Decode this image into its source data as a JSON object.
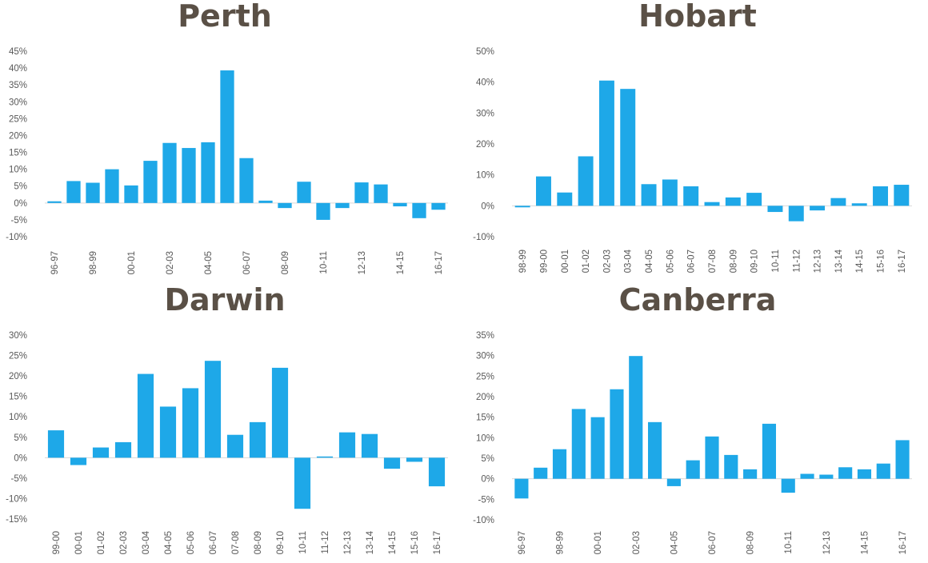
{
  "colors": {
    "bar": "#1ea8e8",
    "title": "#5a5046",
    "text": "#595959",
    "axis": "#d9d9d9"
  },
  "chart_data": [
    {
      "type": "bar",
      "title": "Perth",
      "ylim": [
        -10,
        45
      ],
      "yticks": [
        "45%",
        "40%",
        "35%",
        "30%",
        "25%",
        "20%",
        "15%",
        "10%",
        "5%",
        "0%",
        "-5%",
        "-10%"
      ],
      "ytick_values": [
        45,
        40,
        35,
        30,
        25,
        20,
        15,
        10,
        5,
        0,
        -5,
        -10
      ],
      "categories": [
        "96-97",
        "97-98",
        "98-99",
        "99-00",
        "00-01",
        "01-02",
        "02-03",
        "03-04",
        "04-05",
        "05-06",
        "06-07",
        "07-08",
        "08-09",
        "09-10",
        "10-11",
        "11-12",
        "12-13",
        "13-14",
        "14-15",
        "15-16",
        "16-17"
      ],
      "xtick_labels": [
        "96-97",
        "",
        "98-99",
        "",
        "00-01",
        "",
        "02-03",
        "",
        "04-05",
        "",
        "06-07",
        "",
        "08-09",
        "",
        "10-11",
        "",
        "12-13",
        "",
        "14-15",
        "",
        "16-17"
      ],
      "values": [
        0.5,
        6.5,
        6,
        10,
        5.2,
        12.5,
        17.8,
        16.3,
        18,
        39.3,
        13.3,
        0.7,
        -1.5,
        6.3,
        -5,
        -1.5,
        6.1,
        5.5,
        -1,
        -4.5,
        -2
      ]
    },
    {
      "type": "bar",
      "title": "Hobart",
      "ylim": [
        -10,
        50
      ],
      "yticks": [
        "50%",
        "40%",
        "30%",
        "20%",
        "10%",
        "0%",
        "-10%"
      ],
      "ytick_values": [
        50,
        40,
        30,
        20,
        10,
        0,
        -10
      ],
      "categories": [
        "98-99",
        "99-00",
        "00-01",
        "01-02",
        "02-03",
        "03-04",
        "04-05",
        "05-06",
        "06-07",
        "07-08",
        "08-09",
        "09-10",
        "10-11",
        "11-12",
        "12-13",
        "13-14",
        "14-15",
        "15-16",
        "16-17"
      ],
      "xtick_labels": [
        "98-99",
        "99-00",
        "00-01",
        "01-02",
        "02-03",
        "03-04",
        "04-05",
        "05-06",
        "06-07",
        "07-08",
        "08-09",
        "09-10",
        "10-11",
        "11-12",
        "12-13",
        "13-14",
        "14-15",
        "15-16",
        "16-17"
      ],
      "values": [
        -0.5,
        9.5,
        4.3,
        16,
        40.5,
        37.8,
        7,
        8.5,
        6.3,
        1.2,
        2.7,
        4.2,
        -2,
        -5,
        -1.5,
        2.5,
        0.8,
        6.3,
        6.8
      ]
    },
    {
      "type": "bar",
      "title": "Darwin",
      "ylim": [
        -15,
        30
      ],
      "yticks": [
        "30%",
        "25%",
        "20%",
        "15%",
        "10%",
        "5%",
        "0%",
        "-5%",
        "-10%",
        "-15%"
      ],
      "ytick_values": [
        30,
        25,
        20,
        15,
        10,
        5,
        0,
        -5,
        -10,
        -15
      ],
      "categories": [
        "99-00",
        "00-01",
        "01-02",
        "02-03",
        "03-04",
        "04-05",
        "05-06",
        "06-07",
        "07-08",
        "08-09",
        "09-10",
        "10-11",
        "11-12",
        "12-13",
        "13-14",
        "14-15",
        "15-16",
        "16-17"
      ],
      "xtick_labels": [
        "99-00",
        "00-01",
        "01-02",
        "02-03",
        "03-04",
        "04-05",
        "05-06",
        "06-07",
        "07-08",
        "08-09",
        "09-10",
        "10-11",
        "11-12",
        "12-13",
        "13-14",
        "14-15",
        "15-16",
        "16-17"
      ],
      "values": [
        6.7,
        -1.8,
        2.5,
        3.8,
        20.5,
        12.5,
        17,
        23.7,
        5.6,
        8.7,
        22,
        -12.5,
        0.3,
        6.2,
        5.8,
        -2.7,
        -1,
        -7
      ]
    },
    {
      "type": "bar",
      "title": "Canberra",
      "ylim": [
        -10,
        35
      ],
      "yticks": [
        "35%",
        "30%",
        "25%",
        "20%",
        "15%",
        "10%",
        "5%",
        "0%",
        "-5%",
        "-10%"
      ],
      "ytick_values": [
        35,
        30,
        25,
        20,
        15,
        10,
        5,
        0,
        -5,
        -10
      ],
      "categories": [
        "96-97",
        "97-98",
        "98-99",
        "99-00",
        "00-01",
        "01-02",
        "02-03",
        "03-04",
        "04-05",
        "05-06",
        "06-07",
        "07-08",
        "08-09",
        "09-10",
        "10-11",
        "11-12",
        "12-13",
        "13-14",
        "14-15",
        "15-16",
        "16-17"
      ],
      "xtick_labels": [
        "96-97",
        "",
        "98-99",
        "",
        "00-01",
        "",
        "02-03",
        "",
        "04-05",
        "",
        "06-07",
        "",
        "08-09",
        "",
        "10-11",
        "",
        "12-13",
        "",
        "14-15",
        "",
        "16-17"
      ],
      "values": [
        -4.8,
        2.7,
        7.2,
        17,
        15,
        21.8,
        29.9,
        13.8,
        -1.8,
        4.5,
        10.3,
        5.8,
        2.3,
        13.4,
        -3.4,
        1.2,
        1,
        2.8,
        2.3,
        3.7,
        9.4
      ]
    }
  ]
}
